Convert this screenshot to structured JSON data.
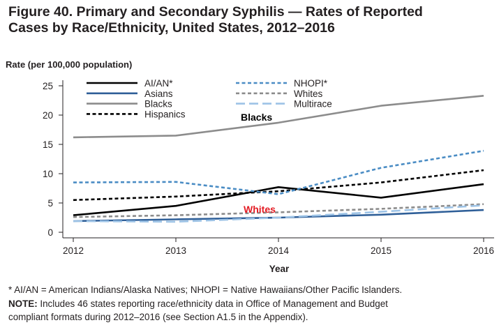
{
  "figure": {
    "title_line1": "Figure 40. Primary and Secondary Syphilis — Rates of Reported",
    "title_line2": "Cases by Race/Ethnicity, United States, 2012–2016"
  },
  "chart_data": {
    "type": "line",
    "x": [
      2012,
      2013,
      2014,
      2015,
      2016
    ],
    "xlabel": "Year",
    "ylabel": "Rate (per 100,000 population)",
    "ylim": [
      0,
      25
    ],
    "yticks": [
      0,
      5,
      10,
      15,
      20,
      25
    ],
    "grid": false,
    "legend_position": "top-left",
    "series": [
      {
        "name": "AI/AN*",
        "values": [
          2.9,
          4.5,
          7.7,
          5.9,
          8.2
        ],
        "color": "#000000",
        "style": "solid"
      },
      {
        "name": "Asians",
        "values": [
          1.9,
          2.2,
          2.5,
          3.0,
          3.8
        ],
        "color": "#2f5f98",
        "style": "solid"
      },
      {
        "name": "Blacks",
        "values": [
          16.2,
          16.5,
          18.7,
          21.6,
          23.3
        ],
        "color": "#8c8c8c",
        "style": "solid"
      },
      {
        "name": "Hispanics",
        "values": [
          5.5,
          6.1,
          7.0,
          8.5,
          10.6
        ],
        "color": "#000000",
        "style": "dashed"
      },
      {
        "name": "NHOPI*",
        "values": [
          8.5,
          8.6,
          6.5,
          11.0,
          13.9
        ],
        "color": "#4a8cc4",
        "style": "dashed"
      },
      {
        "name": "Whites",
        "values": [
          2.6,
          2.9,
          3.4,
          4.0,
          4.8
        ],
        "color": "#8c8c8c",
        "style": "dashed"
      },
      {
        "name": "Multirace",
        "values": [
          1.9,
          1.8,
          2.5,
          3.5,
          4.6
        ],
        "color": "#9dc3e6",
        "style": "longdash"
      }
    ],
    "annotations": [
      {
        "text": "Blacks",
        "color": "#000000"
      },
      {
        "text": "Whites",
        "color": "#e31b23"
      }
    ]
  },
  "footnotes": {
    "abbrev": "* AI/AN = American Indians/Alaska Natives; NHOPI = Native Hawaiians/Other Pacific Islanders.",
    "note_label": "NOTE:",
    "note_line1": " Includes 46 states reporting race/ethnicity data in Office of Management and Budget",
    "note_line2": "compliant formats during 2012–2016 (see Section A1.5 in the Appendix)."
  }
}
